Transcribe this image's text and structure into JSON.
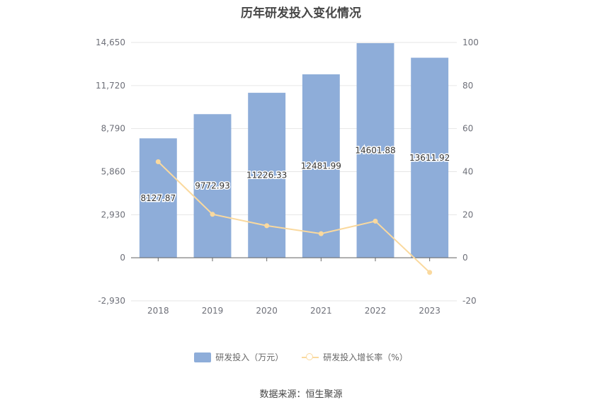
{
  "chart_data": {
    "type": "bar",
    "title": "历年研发投入变化情况",
    "categories": [
      "2018",
      "2019",
      "2020",
      "2021",
      "2022",
      "2023"
    ],
    "series": [
      {
        "name": "研发投入（万元）",
        "type": "bar",
        "axis": "left",
        "values": [
          8127.87,
          9772.93,
          11226.33,
          12481.99,
          14601.88,
          13611.92
        ],
        "labels": [
          "8127.87",
          "9772.93",
          "11226.33",
          "12481.99",
          "14601.88",
          "13611.92"
        ]
      },
      {
        "name": "研发投入增长率（%）",
        "type": "line",
        "axis": "right",
        "values": [
          44.6,
          20.2,
          14.9,
          11.2,
          17.0,
          -6.8
        ]
      }
    ],
    "y_left": {
      "ylim": [
        -2930,
        14650
      ],
      "ticks": [
        -2930,
        0,
        2930,
        5860,
        8790,
        11720,
        14650
      ],
      "tick_labels": [
        "-2,930",
        "0",
        "2,930",
        "5,860",
        "8,790",
        "11,720",
        "14,650"
      ]
    },
    "y_right": {
      "ylim": [
        -20,
        100
      ],
      "ticks": [
        -20,
        0,
        20,
        40,
        60,
        80,
        100
      ],
      "tick_labels": [
        "-20",
        "0",
        "20",
        "40",
        "60",
        "80",
        "100"
      ]
    },
    "grid": true,
    "legend_position": "bottom",
    "colors": {
      "bar": "#8eadd9",
      "line": "#fad99e",
      "grid": "#e6e6e6",
      "axis": "#666666",
      "tick_text": "#6e7079"
    }
  },
  "source_text": "数据来源：恒生聚源"
}
